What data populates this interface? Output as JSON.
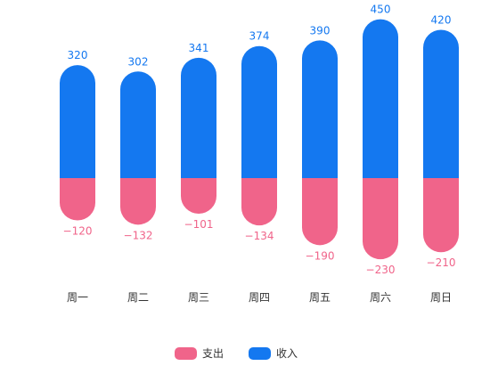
{
  "chart_data": {
    "type": "bar",
    "stacked": true,
    "categories": [
      "周一",
      "周二",
      "周三",
      "周四",
      "周五",
      "周六",
      "周日"
    ],
    "series": [
      {
        "name": "支出",
        "values": [
          -120,
          -132,
          -101,
          -134,
          -190,
          -230,
          -210
        ],
        "color": "#f0648a"
      },
      {
        "name": "收入",
        "values": [
          320,
          302,
          341,
          374,
          390,
          450,
          420
        ],
        "color": "#1478f0"
      }
    ],
    "data_labels": {
      "支出": [
        "−120",
        "−132",
        "−101",
        "−134",
        "−190",
        "−230",
        "−210"
      ],
      "收入": [
        "320",
        "302",
        "341",
        "374",
        "390",
        "450",
        "420"
      ]
    },
    "ylim": [
      -230,
      450
    ],
    "grid": false,
    "legend": "bottom-center"
  }
}
